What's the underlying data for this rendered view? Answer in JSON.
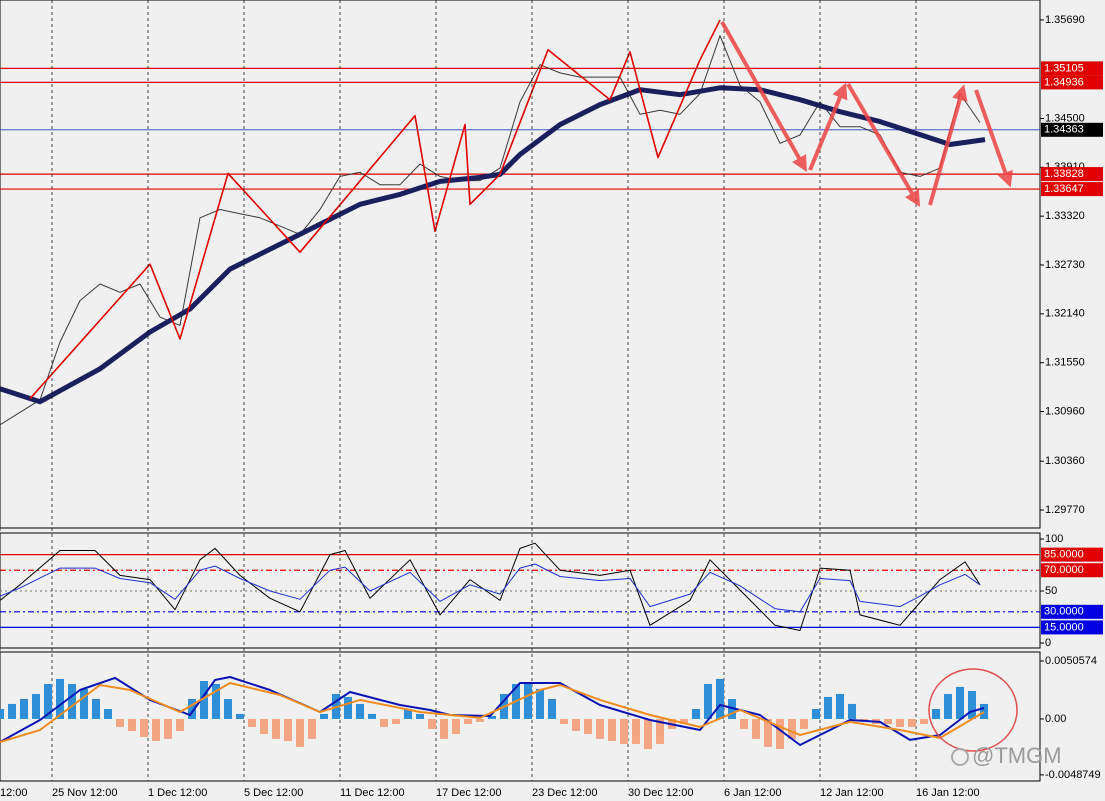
{
  "chart_data": [
    {
      "type": "line",
      "xlim": [
        0,
        260
      ],
      "ylim": [
        1.29553,
        1.35931
      ],
      "yticks": [
        {
          "value": 1.3569,
          "label": "1.35690"
        },
        {
          "value": 1.345,
          "label": "1.34500"
        },
        {
          "value": 1.3391,
          "label": "1.33910"
        },
        {
          "value": 1.3332,
          "label": "1.33320"
        },
        {
          "value": 1.3273,
          "label": "1.32730"
        },
        {
          "value": 1.3214,
          "label": "1.32140"
        },
        {
          "value": 1.3155,
          "label": "1.31550"
        },
        {
          "value": 1.3096,
          "label": "1.30960"
        },
        {
          "value": 1.3036,
          "label": "1.30360"
        },
        {
          "value": 1.2977,
          "label": "1.29770"
        }
      ],
      "levels": [
        {
          "value": 1.35105,
          "label": "1.35105",
          "color": "#e00000",
          "style": "solid"
        },
        {
          "value": 1.34936,
          "label": "1.34936",
          "color": "#e00000",
          "style": "solid"
        },
        {
          "value": 1.34363,
          "label": "1.34363",
          "color": "#2040c0",
          "box": "#000000",
          "style": "solid"
        },
        {
          "value": 1.33828,
          "label": "1.33828",
          "color": "#e00000",
          "style": "solid"
        },
        {
          "value": 1.33647,
          "label": "1.33647",
          "color": "#e00000",
          "style": "solid"
        }
      ],
      "series": [
        {
          "color": "#3a3a3a",
          "width": 1,
          "x": [
            0,
            5,
            10,
            15,
            20,
            25,
            30,
            35,
            40,
            45,
            50,
            55,
            60,
            65,
            70,
            75,
            80,
            85,
            90,
            95,
            100,
            105,
            110,
            115,
            120,
            125,
            130,
            135,
            140,
            145,
            150,
            155,
            160,
            165,
            170,
            175,
            180,
            185,
            190,
            195,
            200,
            205,
            210,
            215,
            220,
            225,
            230,
            235,
            240,
            245
          ],
          "values": [
            1.308,
            1.3095,
            1.311,
            1.318,
            1.323,
            1.325,
            1.324,
            1.325,
            1.321,
            1.32,
            1.333,
            1.334,
            1.3335,
            1.333,
            1.332,
            1.331,
            1.334,
            1.338,
            1.3385,
            1.337,
            1.337,
            1.3395,
            1.338,
            1.3375,
            1.3375,
            1.339,
            1.347,
            1.3515,
            1.3505,
            1.35,
            1.35,
            1.35,
            1.3455,
            1.346,
            1.3455,
            1.348,
            1.355,
            1.349,
            1.347,
            1.342,
            1.343,
            1.347,
            1.344,
            1.344,
            1.343,
            1.3385,
            1.338,
            1.339,
            1.348,
            1.3445
          ]
        },
        {
          "color": "#1c1f5e",
          "width": 5,
          "x": [
            0,
            10,
            25,
            37.5,
            47.5,
            57.5,
            70,
            80,
            90,
            100,
            110,
            120,
            125,
            130,
            140,
            150,
            160,
            170,
            180,
            190,
            200,
            210,
            220,
            230,
            237.5,
            246.25
          ],
          "values": [
            1.31235,
            1.31079,
            1.31476,
            1.31921,
            1.32198,
            1.3268,
            1.32981,
            1.33222,
            1.33463,
            1.33583,
            1.3374,
            1.33788,
            1.33824,
            1.34065,
            1.34426,
            1.34667,
            1.34847,
            1.34787,
            1.34871,
            1.34847,
            1.34727,
            1.34582,
            1.34462,
            1.34305,
            1.34185,
            1.34245
          ]
        },
        {
          "color": "#e00000",
          "width": 1.6,
          "x": [
            7.5,
            37.5,
            45,
            57,
            75,
            103.75,
            108.75,
            116.25,
            117.5,
            125,
            137,
            152.5,
            157.5,
            164.5,
            175,
            180
          ],
          "values": [
            1.31115,
            1.3274,
            1.31837,
            1.33836,
            1.32885,
            1.34534,
            1.33137,
            1.34426,
            1.33463,
            1.33824,
            1.35329,
            1.34727,
            1.35305,
            1.34029,
            1.35209,
            1.3569
          ]
        }
      ]
    },
    {
      "type": "line",
      "xlim": [
        0,
        260
      ],
      "ylim": [
        -4.8,
        105.8
      ],
      "yticks": [
        100,
        50,
        0
      ],
      "levels": [
        {
          "value": 85,
          "label": "85.0000",
          "color": "#e00000",
          "style": "solid"
        },
        {
          "value": 70,
          "label": "70.0000",
          "color": "#e00000",
          "style": "dashed"
        },
        {
          "value": 50,
          "color": "#888888",
          "style": "dotted"
        },
        {
          "value": 30,
          "label": "30.0000",
          "color": "#0000e0",
          "style": "dashed"
        },
        {
          "value": 15,
          "label": "15.0000",
          "color": "#0000e0",
          "style": "solid"
        }
      ],
      "series": [
        {
          "color": "#000000",
          "width": 1,
          "x": [
            0,
            5,
            15,
            23.75,
            30,
            37.5,
            43.75,
            50,
            53.75,
            60,
            67.5,
            75,
            82.5,
            86.25,
            92.5,
            102.5,
            110,
            117.5,
            125,
            130,
            133.75,
            140,
            150,
            157.5,
            162.5,
            172.5,
            177.5,
            185,
            193.75,
            200,
            205,
            212.5,
            215,
            225,
            230,
            235,
            241.25,
            245
          ],
          "values": [
            41,
            56,
            89,
            89,
            65,
            61,
            32,
            80,
            91,
            65,
            43,
            30,
            85,
            89,
            43,
            80,
            27,
            61,
            41,
            91,
            96,
            70,
            65,
            70,
            17,
            41,
            80,
            51,
            17,
            12,
            72,
            70,
            27,
            17,
            39,
            61,
            78,
            56
          ]
        },
        {
          "color": "#2030d0",
          "width": 1,
          "x": [
            0,
            5,
            15,
            23.75,
            30,
            37.5,
            43.75,
            50,
            53.75,
            60,
            67.5,
            75,
            82.5,
            86.25,
            92.5,
            102.5,
            110,
            117.5,
            125,
            130,
            133.75,
            140,
            150,
            157.5,
            162.5,
            172.5,
            177.5,
            185,
            193.75,
            200,
            205,
            212.5,
            215,
            225,
            230,
            235,
            241.25,
            245
          ],
          "values": [
            45,
            53,
            72,
            72,
            62,
            58,
            42,
            70,
            74,
            62,
            50,
            42,
            70,
            73,
            50,
            68,
            40,
            56,
            47,
            72,
            76,
            64,
            60,
            62,
            35,
            47,
            68,
            55,
            33,
            30,
            62,
            60,
            40,
            35,
            45,
            56,
            66,
            56
          ]
        }
      ]
    },
    {
      "type": "bar",
      "xlim": [
        0,
        260
      ],
      "ylim": [
        -0.00541,
        0.00584
      ],
      "yticks": [
        0.0050574,
        {
          "value": 0,
          "label": "0.00"
        },
        -0.0048749
      ],
      "xticks": [
        {
          "value": 0,
          "label": "12:00"
        },
        {
          "value": 13,
          "label": "25 Nov 12:00"
        },
        {
          "value": 37,
          "label": "1 Dec 12:00"
        },
        {
          "value": 61,
          "label": "5 Dec 12:00"
        },
        {
          "value": 85,
          "label": "11 Dec 12:00"
        },
        {
          "value": 109,
          "label": "17 Dec 12:00"
        },
        {
          "value": 133,
          "label": "23 Dec 12:00"
        },
        {
          "value": 157,
          "label": "30 Dec 12:00"
        },
        {
          "value": 181,
          "label": "6 Jan 12:00"
        },
        {
          "value": 205,
          "label": "12 Jan 12:00"
        },
        {
          "value": 229,
          "label": "16 Jan 12:00"
        }
      ],
      "color_up": "#2e8fd6",
      "color_down": "#f4a582",
      "x": [
        0,
        3,
        6,
        9,
        12,
        15,
        18,
        21,
        24,
        27,
        30,
        33,
        36,
        39,
        42,
        45,
        48,
        51,
        54,
        57,
        60,
        63,
        66,
        69,
        72,
        75,
        78,
        81,
        84,
        87,
        90,
        93,
        96,
        99,
        102,
        105,
        108,
        111,
        114,
        117,
        120,
        123,
        126,
        129,
        132,
        135,
        138,
        141,
        144,
        147,
        150,
        153,
        156,
        159,
        162,
        165,
        168,
        171,
        174,
        177,
        180,
        183,
        186,
        189,
        192,
        195,
        198,
        201,
        204,
        207,
        210,
        213,
        216,
        219,
        222,
        225,
        228,
        231,
        234,
        237,
        240,
        243,
        246
      ],
      "values": [
        0.00087,
        0.00131,
        0.00174,
        0.00218,
        0.00305,
        0.00349,
        0.00305,
        0.00262,
        0.00174,
        0.00087,
        -0.0007,
        -0.00105,
        -0.00157,
        -0.00192,
        -0.00174,
        -0.00105,
        0.00174,
        0.00331,
        0.00305,
        0.00174,
        0.00044,
        -0.0007,
        -0.00131,
        -0.00174,
        -0.00192,
        -0.00244,
        -0.00174,
        0.00044,
        0.00218,
        0.00192,
        0.00131,
        0.00044,
        -0.0007,
        -0.00044,
        0.00087,
        0.00044,
        -0.00087,
        -0.00174,
        -0.00131,
        -0.00044,
        -0.00026,
        0.00026,
        0.00218,
        0.00305,
        0.00305,
        0.00262,
        0.00174,
        -0.00044,
        -0.00105,
        -0.00131,
        -0.00174,
        -0.00192,
        -0.00218,
        -0.00218,
        -0.00262,
        -0.00218,
        -0.00087,
        -0.00044,
        0.00087,
        0.00305,
        0.00349,
        0.00174,
        -0.00087,
        -0.00174,
        -0.00244,
        -0.00262,
        -0.00174,
        -0.00087,
        0.00087,
        0.00192,
        0.00218,
        0.00131,
        -0.00026,
        -0.00044,
        -0.00044,
        -0.0007,
        -0.0007,
        -0.00044,
        0.00087,
        0.00218,
        0.00279,
        0.00244,
        0.00131
      ],
      "series": [
        {
          "color": "#0a14b4",
          "width": 2,
          "x": [
            0,
            10,
            20,
            28.75,
            37.5,
            47.5,
            53.75,
            57.5,
            67.5,
            80,
            87.5,
            95,
            100,
            107.5,
            112.5,
            122.5,
            130,
            140,
            150,
            162.5,
            175,
            180,
            190,
            200,
            207.5,
            212.5,
            220,
            227.5,
            235,
            242.5,
            246
          ],
          "values": [
            -0.00201,
            -9e-05,
            0.00253,
            0.00358,
            0.00166,
            0.00035,
            0.0034,
            0.00366,
            0.00253,
            0.00061,
            0.00235,
            0.00166,
            0.00122,
            0.00078,
            0.00035,
            0.00026,
            0.00314,
            0.00314,
            0.00122,
            -9e-05,
            -0.00096,
            0.00122,
            0.00035,
            -0.00227,
            -0.00096,
            -9e-05,
            -0.00026,
            -0.00183,
            -0.0014,
            0.00061,
            0.00096
          ]
        },
        {
          "color": "#f08c1e",
          "width": 2,
          "x": [
            0,
            10,
            25,
            32.5,
            45,
            57.5,
            70,
            80,
            90,
            105,
            120,
            135,
            140,
            150,
            162.5,
            175,
            185,
            200,
            212.5,
            225,
            235,
            246
          ],
          "values": [
            -0.00201,
            -0.00096,
            0.00296,
            0.00253,
            0.00061,
            0.00314,
            0.00209,
            0.00061,
            0.00166,
            0.00061,
            9e-05,
            0.00253,
            0.00296,
            0.00166,
            0.00035,
            -0.0007,
            0.00078,
            -0.0014,
            -0.00026,
            -0.00096,
            -0.00166,
            0.00061
          ]
        }
      ]
    }
  ],
  "watermark": "@TMGM"
}
